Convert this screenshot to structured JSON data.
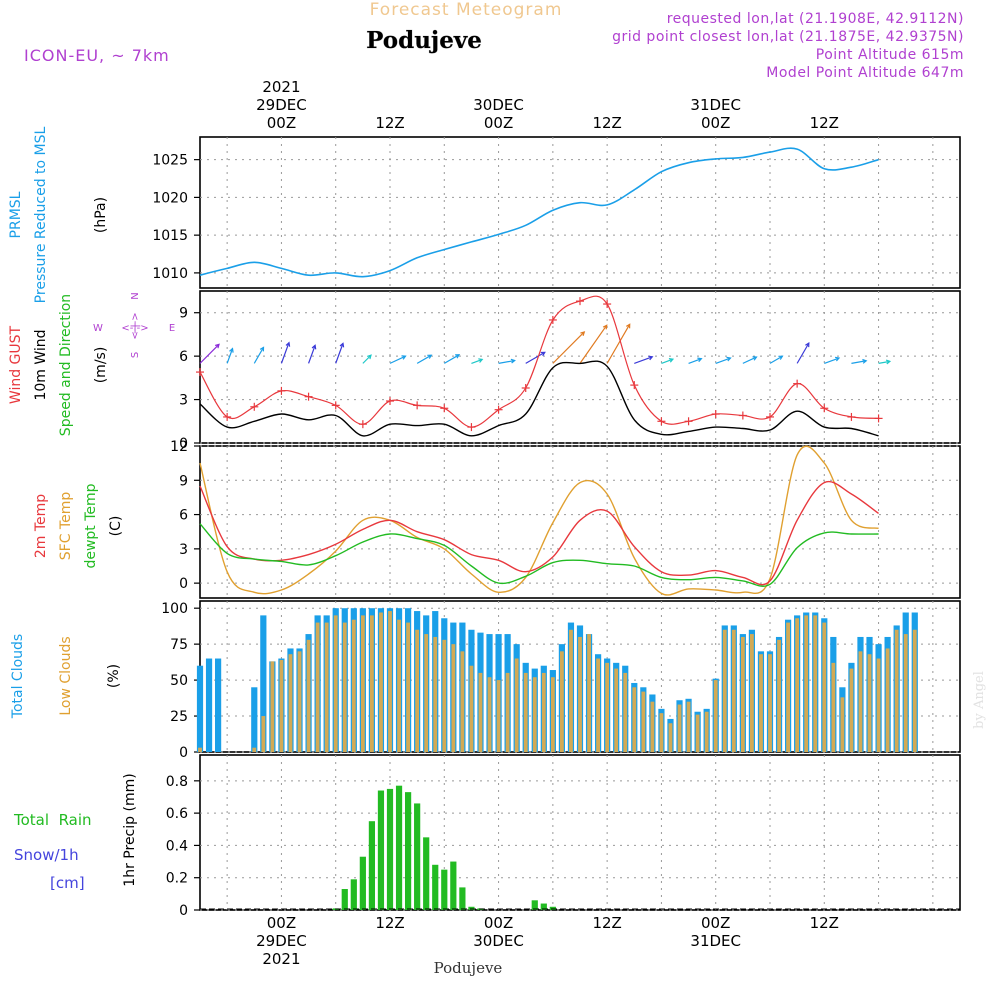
{
  "header": {
    "product": "Forecast Meteogram",
    "station": "Podujeve",
    "model": "ICON-EU, ~ 7km",
    "requested": "requested lon,lat (21.1908E, 42.9112N)",
    "gridpoint": "grid point closest lon,lat (21.1875E, 42.9375N)",
    "point_alt": "Point Altitude 615m",
    "model_alt": "Model Point Altitude 647m",
    "footer_station": "Podujeve",
    "watermark": "by Angel"
  },
  "time_axis": {
    "hour_step": 3,
    "hour_start": 15,
    "top_labels": [
      {
        "hour": 24,
        "lines": [
          "2021",
          "29DEC",
          "00Z"
        ]
      },
      {
        "hour": 36,
        "lines": [
          "12Z"
        ]
      },
      {
        "hour": 48,
        "lines": [
          "30DEC",
          "00Z"
        ]
      },
      {
        "hour": 60,
        "lines": [
          "12Z"
        ]
      },
      {
        "hour": 72,
        "lines": [
          "31DEC",
          "00Z"
        ]
      },
      {
        "hour": 84,
        "lines": [
          "12Z"
        ]
      }
    ],
    "bottom_labels": [
      {
        "hour": 24,
        "lines": [
          "00Z",
          "29DEC",
          "2021"
        ]
      },
      {
        "hour": 36,
        "lines": [
          "12Z"
        ]
      },
      {
        "hour": 48,
        "lines": [
          "00Z",
          "30DEC"
        ]
      },
      {
        "hour": 60,
        "lines": [
          "12Z"
        ]
      },
      {
        "hour": 72,
        "lines": [
          "00Z",
          "31DEC"
        ]
      },
      {
        "hour": 84,
        "lines": [
          "12Z"
        ]
      }
    ]
  },
  "panel_labels": {
    "pressure": [
      {
        "text": "PRMSL",
        "color": "#1a9fe8"
      },
      {
        "text": "Pressure Reduced to MSL",
        "color": "#1a9fe8"
      },
      {
        "text": "(hPa)",
        "color": "#000000"
      }
    ],
    "wind": [
      {
        "text": "Wind GUST",
        "color": "#e8383d"
      },
      {
        "text": "10m Wind",
        "color": "#000000"
      },
      {
        "text": "Speed and Direction",
        "color": "#22bb22"
      },
      {
        "text": "(m/s)",
        "color": "#000000"
      }
    ],
    "temp": [
      {
        "text": "2m Temp",
        "color": "#e8383d"
      },
      {
        "text": "SFC Temp",
        "color": "#e0a030"
      },
      {
        "text": "dewpt Temp",
        "color": "#22bb22"
      },
      {
        "text": "(C)",
        "color": "#000000"
      }
    ],
    "clouds": [
      {
        "text": "Total Clouds",
        "color": "#1a9fe8"
      },
      {
        "text": "Low Clouds",
        "color": "#e0a030"
      },
      {
        "text": "(%)",
        "color": "#000000"
      }
    ],
    "precip": {
      "rotated": "1hr Precip (mm)",
      "legend": [
        {
          "text": "Total  Rain",
          "color": "#22bb22"
        },
        {
          "text": "Snow/1h",
          "color": "#4444dd"
        },
        {
          "text": "[cm]",
          "color": "#4444dd"
        }
      ]
    },
    "compass": {
      "n": "N",
      "s": "S",
      "w": "W",
      "e": "E",
      "h": "<-|->",
      "v": "<-|->"
    }
  },
  "colors": {
    "pressure": "#1a9fe8",
    "gust": "#e8383d",
    "wind": "#000000",
    "t2m": "#e8383d",
    "tsfc": "#e0a030",
    "dewpt": "#22bb22",
    "cloud_total": "#1a9fe8",
    "cloud_low": "#d2aa55",
    "rain": "#22bb22",
    "title_orange": "#f0c890",
    "info_purple": "#b040d0"
  },
  "chart_data": [
    {
      "type": "line",
      "name": "pressure",
      "ylim": [
        1008,
        1028
      ],
      "yticks": [
        1010,
        1015,
        1020,
        1025
      ],
      "x_hours": [
        15,
        18,
        21,
        24,
        27,
        30,
        33,
        36,
        39,
        42,
        45,
        48,
        51,
        54,
        57,
        60,
        63,
        66,
        69,
        72,
        75,
        78,
        81,
        84,
        87,
        90
      ],
      "series": [
        {
          "values": [
            1009.7,
            1010.6,
            1011.4,
            1010.6,
            1009.7,
            1010.0,
            1009.5,
            1010.3,
            1012.0,
            1013.1,
            1014.1,
            1015.1,
            1016.3,
            1018.3,
            1019.3,
            1019.0,
            1021.0,
            1023.4,
            1024.6,
            1025.1,
            1025.3,
            1026.0,
            1026.4,
            1023.8,
            1024.0,
            1025.0
          ]
        }
      ]
    },
    {
      "type": "line",
      "name": "wind",
      "ylim": [
        0,
        10.5
      ],
      "yticks": [
        0,
        3,
        6,
        9
      ],
      "x_hours": [
        15,
        18,
        21,
        24,
        27,
        30,
        33,
        36,
        39,
        42,
        45,
        48,
        51,
        54,
        57,
        60,
        63,
        66,
        69,
        72,
        75,
        78,
        81,
        84,
        87,
        90
      ],
      "series": [
        {
          "name": "Wind GUST",
          "values": [
            4.9,
            1.8,
            2.5,
            3.6,
            3.2,
            2.6,
            1.3,
            2.9,
            2.6,
            2.4,
            1.1,
            2.3,
            3.8,
            8.5,
            9.8,
            9.6,
            4.0,
            1.5,
            1.5,
            2.0,
            1.9,
            1.8,
            4.1,
            2.4,
            1.8,
            1.7
          ]
        },
        {
          "name": "10m Wind",
          "values": [
            2.7,
            1.1,
            1.5,
            2.0,
            1.6,
            1.9,
            0.5,
            1.3,
            1.2,
            1.3,
            0.5,
            1.2,
            2.0,
            5.2,
            5.5,
            5.3,
            1.6,
            0.6,
            0.8,
            1.1,
            1.0,
            0.9,
            2.2,
            1.1,
            1.0,
            0.5
          ]
        }
      ],
      "direction_deg": [
        225,
        200,
        210,
        200,
        200,
        200,
        225,
        245,
        240,
        240,
        250,
        260,
        240,
        225,
        215,
        210,
        250,
        250,
        250,
        250,
        245,
        240,
        210,
        250,
        260,
        260
      ]
    },
    {
      "type": "line",
      "name": "temperature",
      "ylim": [
        -1.3,
        12
      ],
      "yticks": [
        0,
        3,
        6,
        9,
        12
      ],
      "x_hours": [
        15,
        18,
        21,
        24,
        27,
        30,
        33,
        36,
        39,
        42,
        45,
        48,
        51,
        54,
        57,
        60,
        63,
        66,
        69,
        72,
        75,
        78,
        81,
        84,
        87,
        90
      ],
      "series": [
        {
          "name": "2m Temp",
          "values": [
            8.5,
            3.2,
            2.1,
            2.0,
            2.5,
            3.4,
            4.7,
            5.5,
            4.5,
            3.8,
            2.5,
            2.0,
            1.0,
            2.3,
            5.5,
            6.3,
            3.2,
            1.0,
            0.7,
            1.1,
            0.5,
            0.2,
            5.5,
            8.8,
            7.8,
            6.1
          ]
        },
        {
          "name": "SFC Temp",
          "values": [
            10.5,
            1.0,
            -0.8,
            -0.6,
            0.8,
            2.8,
            5.5,
            5.5,
            4.0,
            3.0,
            0.8,
            -0.8,
            0.5,
            5.3,
            8.8,
            7.8,
            2.2,
            -0.9,
            -0.5,
            -0.6,
            -0.8,
            0.4,
            11.2,
            10.5,
            5.5,
            4.8
          ]
        },
        {
          "name": "dewpt Temp",
          "values": [
            5.2,
            2.6,
            2.1,
            1.9,
            1.6,
            2.4,
            3.6,
            4.3,
            3.9,
            3.3,
            1.5,
            0.0,
            0.6,
            1.8,
            2.0,
            1.7,
            1.5,
            0.5,
            0.3,
            0.5,
            0.2,
            -0.1,
            3.1,
            4.4,
            4.3,
            4.3
          ]
        }
      ]
    },
    {
      "type": "bar",
      "name": "clouds",
      "ylim": [
        0,
        105
      ],
      "yticks": [
        0,
        25,
        50,
        75,
        100
      ],
      "x_hours": [
        15,
        16,
        17,
        18,
        19,
        20,
        21,
        22,
        23,
        24,
        25,
        26,
        27,
        28,
        29,
        30,
        31,
        32,
        33,
        34,
        35,
        36,
        37,
        38,
        39,
        40,
        41,
        42,
        43,
        44,
        45,
        46,
        47,
        48,
        49,
        50,
        51,
        52,
        53,
        54,
        55,
        56,
        57,
        58,
        59,
        60,
        61,
        62,
        63,
        64,
        65,
        66,
        67,
        68,
        69,
        70,
        71,
        72,
        73,
        74,
        75,
        76,
        77,
        78,
        79,
        80,
        81,
        82,
        83,
        84,
        85,
        86,
        87,
        88,
        89,
        90,
        91,
        92,
        93,
        94,
        95,
        96,
        97,
        98,
        99
      ],
      "series": [
        {
          "name": "Total Clouds",
          "values": [
            60,
            65,
            65,
            0,
            0,
            0,
            45,
            95,
            63,
            65,
            72,
            72,
            82,
            95,
            95,
            100,
            100,
            100,
            100,
            100,
            100,
            100,
            100,
            100,
            98,
            95,
            98,
            93,
            90,
            90,
            85,
            83,
            82,
            82,
            82,
            75,
            62,
            58,
            60,
            57,
            75,
            90,
            88,
            82,
            68,
            65,
            62,
            60,
            48,
            45,
            40,
            30,
            23,
            36,
            37,
            28,
            30,
            51,
            88,
            88,
            82,
            85,
            70,
            70,
            80,
            92,
            95,
            97,
            97,
            93,
            80,
            45,
            62,
            80,
            80,
            75,
            80,
            88,
            97,
            97,
            0,
            0,
            0,
            0,
            0
          ]
        },
        {
          "name": "Low Clouds",
          "values": [
            3,
            0,
            0,
            0,
            0,
            0,
            3,
            25,
            63,
            64,
            68,
            70,
            78,
            90,
            90,
            95,
            90,
            92,
            95,
            95,
            97,
            98,
            92,
            90,
            85,
            82,
            80,
            78,
            75,
            70,
            60,
            55,
            52,
            50,
            55,
            65,
            55,
            52,
            55,
            52,
            70,
            85,
            80,
            82,
            65,
            62,
            58,
            55,
            45,
            42,
            35,
            27,
            20,
            33,
            35,
            26,
            28,
            50,
            85,
            85,
            80,
            82,
            68,
            68,
            78,
            90,
            93,
            95,
            95,
            90,
            62,
            38,
            58,
            70,
            68,
            65,
            72,
            85,
            82,
            85,
            0,
            0,
            0,
            0,
            0
          ]
        }
      ]
    },
    {
      "type": "bar",
      "name": "precip",
      "ylim": [
        0,
        0.96
      ],
      "yticks": [
        0,
        0.2,
        0.4,
        0.6,
        0.8
      ],
      "x_hours": [
        30,
        31,
        32,
        33,
        34,
        35,
        36,
        37,
        38,
        39,
        40,
        41,
        42,
        43,
        44,
        45,
        46,
        47,
        48,
        49,
        50,
        51,
        52,
        53,
        54,
        55
      ],
      "series": [
        {
          "name": "Total Rain",
          "values": [
            0.01,
            0.13,
            0.19,
            0.33,
            0.55,
            0.74,
            0.75,
            0.77,
            0.73,
            0.66,
            0.45,
            0.28,
            0.25,
            0.3,
            0.14,
            0.02,
            0.01,
            0.0,
            0.0,
            0.0,
            0.0,
            0.0,
            0.06,
            0.04,
            0.02,
            0.0
          ]
        }
      ]
    }
  ]
}
